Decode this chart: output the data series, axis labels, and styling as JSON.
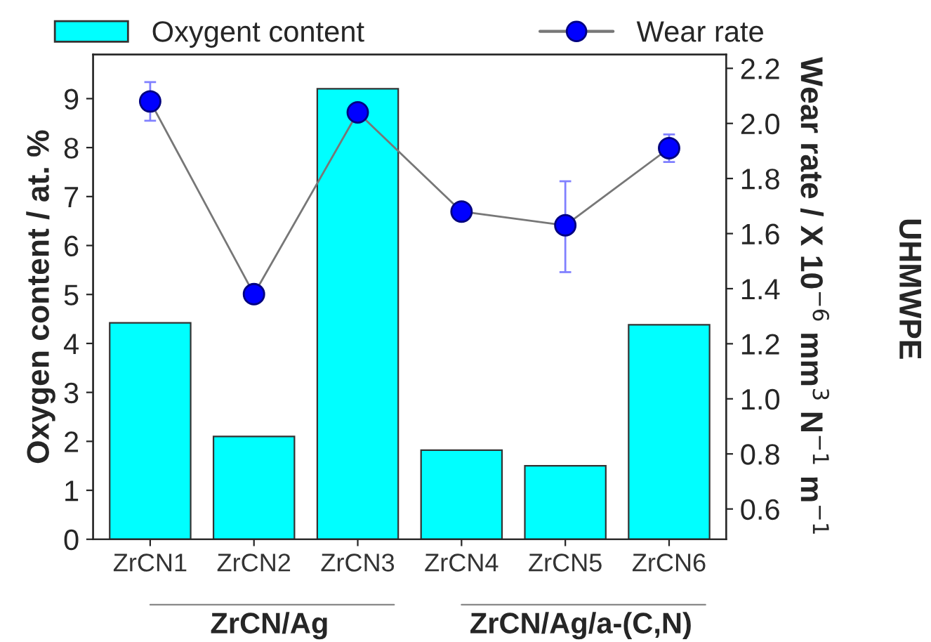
{
  "chart_data": {
    "type": "bar",
    "categories": [
      "ZrCN1",
      "ZrCN2",
      "ZrCN3",
      "ZrCN4",
      "ZrCN5",
      "ZrCN6"
    ],
    "ylabel": "Oxygen content / at. %",
    "y2label": "Wear rate / X 10$^{−6}$ mm$^{3}$ N$^{−1}$ m$^{−1}$",
    "series": [
      {
        "name": "Oxygent content",
        "color": "#00ffff",
        "values": [
          4.42,
          2.1,
          9.2,
          1.82,
          1.5,
          4.38
        ]
      },
      {
        "name": "Wear rate",
        "type": "line",
        "axis": "y2",
        "color": "#0000ff",
        "values": [
          2.08,
          1.38,
          2.04,
          1.68,
          1.63,
          1.91
        ],
        "errors": [
          [
            2.01,
            2.15
          ],
          null,
          null,
          null,
          [
            1.46,
            1.79
          ],
          [
            1.86,
            1.96
          ]
        ]
      }
    ],
    "ylim": [
      0,
      9.9
    ],
    "yticks": [
      0,
      1,
      2,
      3,
      4,
      5,
      6,
      7,
      8,
      9
    ],
    "y2lim": [
      0.49,
      2.25
    ],
    "y2ticks": [
      0.6,
      0.8,
      {
        "value": 1,
        "label": "1.0"
      },
      1.2,
      1.4,
      1.6,
      1.8,
      {
        "value": 2,
        "label": "2.0"
      },
      2.2
    ],
    "annotations": [
      "ZrCN/Ag",
      "ZrCN/Ag/a-(C,N)",
      "UHMWPE"
    ],
    "marker": "circle",
    "line_style": "solid",
    "legend": "top",
    "grid": false
  }
}
